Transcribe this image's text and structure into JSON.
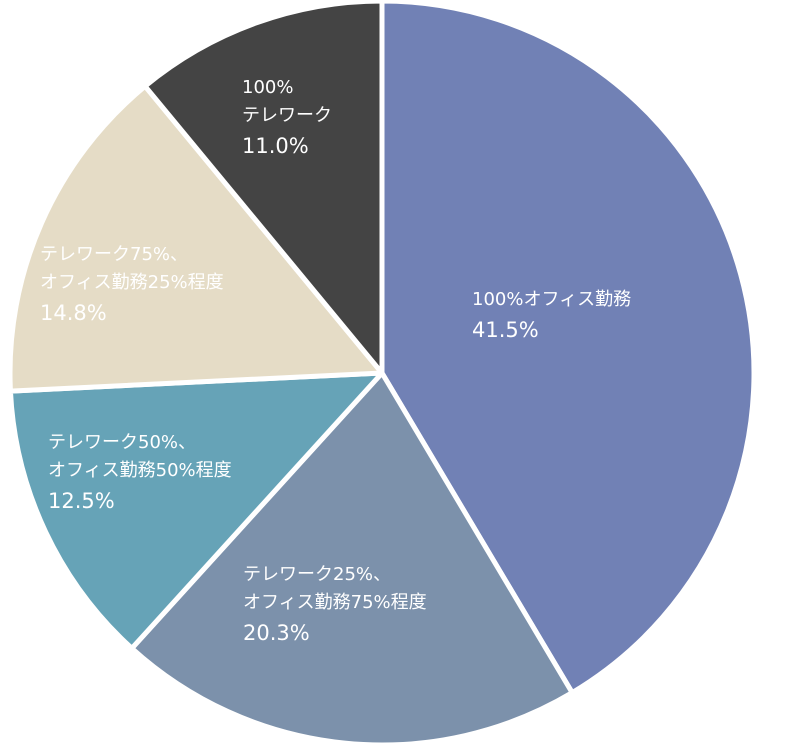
{
  "chart_data": {
    "type": "pie",
    "start_angle_deg": 0,
    "direction": "clockwise",
    "slices": [
      {
        "label_lines": [
          "100%オフィス勤務"
        ],
        "value_label": "41.5%",
        "value": 41.5,
        "color": "#7181b5",
        "text_color": "#ffffff"
      },
      {
        "label_lines": [
          "テレワーク25%、",
          "オフィス勤務75%程度"
        ],
        "value_label": "20.3%",
        "value": 20.3,
        "color": "#7c91ab",
        "text_color": "#ffffff"
      },
      {
        "label_lines": [
          "テレワーク50%、",
          "オフィス勤務50%程度"
        ],
        "value_label": "12.5%",
        "value": 12.5,
        "color": "#66a3b7",
        "text_color": "#ffffff"
      },
      {
        "label_lines": [
          "テレワーク75%、",
          "オフィス勤務25%程度"
        ],
        "value_label": "14.8%",
        "value": 14.8,
        "color": "#e5dcc6",
        "text_color": "#2b2b2b"
      },
      {
        "label_lines": [
          "100%",
          "テレワーク"
        ],
        "value_label": "11.0%",
        "value": 11.0,
        "color": "#444444",
        "text_color": "#ffffff"
      }
    ]
  }
}
